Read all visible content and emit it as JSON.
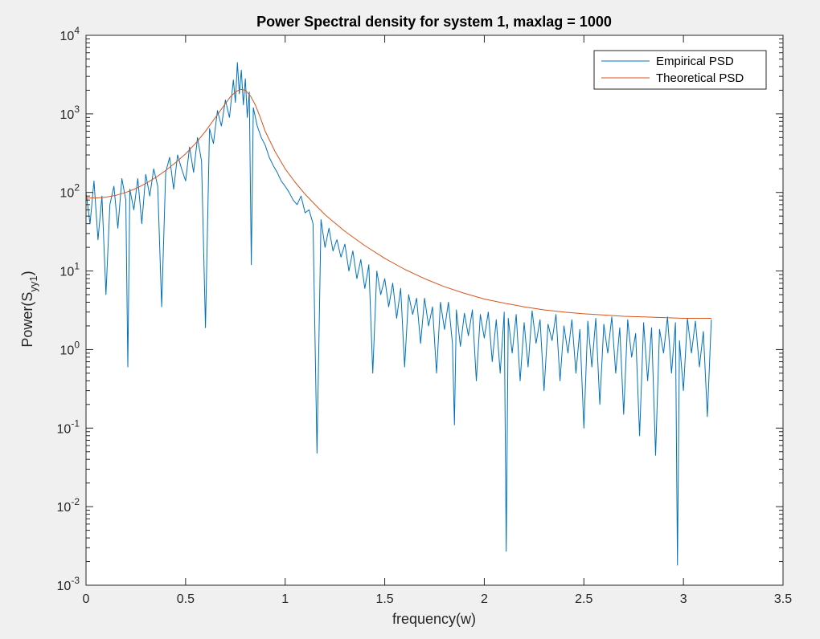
{
  "chart_data": {
    "type": "line",
    "title": "Power Spectral density for system 1, maxlag = 1000",
    "xlabel": "frequency(w)",
    "ylabel": {
      "main": "Power(S",
      "sub": "yy1",
      "close": ")"
    },
    "xlim": [
      0,
      3.5
    ],
    "ylim": [
      0.001,
      10000
    ],
    "yscale": "log",
    "xticks": [
      {
        "v": 0,
        "label": "0"
      },
      {
        "v": 0.5,
        "label": "0.5"
      },
      {
        "v": 1,
        "label": "1"
      },
      {
        "v": 1.5,
        "label": "1.5"
      },
      {
        "v": 2,
        "label": "2"
      },
      {
        "v": 2.5,
        "label": "2.5"
      },
      {
        "v": 3,
        "label": "3"
      },
      {
        "v": 3.5,
        "label": "3.5"
      }
    ],
    "yticks": [
      {
        "v": 0.001,
        "base": "10",
        "exp": "-3"
      },
      {
        "v": 0.01,
        "base": "10",
        "exp": "-2"
      },
      {
        "v": 0.1,
        "base": "10",
        "exp": "-1"
      },
      {
        "v": 1,
        "base": "10",
        "exp": "0"
      },
      {
        "v": 10,
        "base": "10",
        "exp": "1"
      },
      {
        "v": 100,
        "base": "10",
        "exp": "2"
      },
      {
        "v": 1000,
        "base": "10",
        "exp": "3"
      },
      {
        "v": 10000,
        "base": "10",
        "exp": "4"
      }
    ],
    "grid": false,
    "legend_position": "top-right",
    "series": [
      {
        "name": "Empirical PSD",
        "color": "#0072bd",
        "x": [
          0.0,
          0.02,
          0.04,
          0.06,
          0.08,
          0.1,
          0.12,
          0.14,
          0.16,
          0.18,
          0.2,
          0.21,
          0.22,
          0.24,
          0.26,
          0.28,
          0.3,
          0.32,
          0.34,
          0.36,
          0.38,
          0.4,
          0.42,
          0.44,
          0.46,
          0.48,
          0.5,
          0.52,
          0.54,
          0.56,
          0.58,
          0.6,
          0.62,
          0.64,
          0.66,
          0.68,
          0.7,
          0.72,
          0.74,
          0.75,
          0.76,
          0.77,
          0.78,
          0.79,
          0.8,
          0.81,
          0.82,
          0.83,
          0.84,
          0.86,
          0.88,
          0.9,
          0.92,
          0.94,
          0.96,
          0.98,
          1.0,
          1.02,
          1.04,
          1.06,
          1.08,
          1.1,
          1.12,
          1.14,
          1.16,
          1.18,
          1.2,
          1.22,
          1.24,
          1.26,
          1.28,
          1.3,
          1.32,
          1.34,
          1.36,
          1.38,
          1.4,
          1.42,
          1.44,
          1.46,
          1.48,
          1.5,
          1.52,
          1.54,
          1.56,
          1.58,
          1.6,
          1.62,
          1.64,
          1.66,
          1.68,
          1.7,
          1.72,
          1.74,
          1.76,
          1.78,
          1.8,
          1.82,
          1.84,
          1.85,
          1.86,
          1.88,
          1.9,
          1.92,
          1.94,
          1.96,
          1.98,
          2.0,
          2.02,
          2.04,
          2.06,
          2.08,
          2.1,
          2.11,
          2.12,
          2.14,
          2.16,
          2.18,
          2.2,
          2.22,
          2.24,
          2.26,
          2.28,
          2.3,
          2.32,
          2.34,
          2.36,
          2.38,
          2.4,
          2.42,
          2.44,
          2.46,
          2.48,
          2.5,
          2.52,
          2.54,
          2.56,
          2.58,
          2.6,
          2.62,
          2.64,
          2.66,
          2.68,
          2.7,
          2.72,
          2.74,
          2.76,
          2.78,
          2.8,
          2.82,
          2.84,
          2.86,
          2.88,
          2.9,
          2.92,
          2.94,
          2.96,
          2.97,
          2.98,
          3.0,
          3.02,
          3.04,
          3.06,
          3.08,
          3.1,
          3.12,
          3.14
        ],
        "y": [
          100,
          40,
          140,
          25,
          90,
          5,
          70,
          120,
          35,
          150,
          80,
          0.6,
          110,
          60,
          150,
          40,
          170,
          90,
          200,
          120,
          3.5,
          180,
          280,
          110,
          300,
          200,
          140,
          380,
          180,
          500,
          250,
          1.9,
          650,
          420,
          1100,
          700,
          1500,
          900,
          2700,
          1400,
          4500,
          1800,
          3600,
          1300,
          2800,
          900,
          1900,
          12,
          1200,
          700,
          500,
          400,
          280,
          220,
          180,
          140,
          120,
          100,
          80,
          70,
          90,
          55,
          60,
          40,
          0.048,
          45,
          20,
          35,
          18,
          25,
          15,
          22,
          10,
          18,
          8,
          14,
          6,
          12,
          0.5,
          10,
          5,
          8,
          3.5,
          7,
          2.5,
          6,
          0.6,
          5,
          2.8,
          4.5,
          1.2,
          4.5,
          2,
          3.5,
          0.5,
          4,
          1.8,
          4,
          1.2,
          0.11,
          3.2,
          1.1,
          2.9,
          1.5,
          3.2,
          0.4,
          2.8,
          1.4,
          3,
          0.7,
          2.4,
          0.5,
          3,
          0.0027,
          2.5,
          0.9,
          2.8,
          0.4,
          2.2,
          0.6,
          3.1,
          1.2,
          2.4,
          0.3,
          2.1,
          1.3,
          2.8,
          0.4,
          2,
          0.9,
          2.4,
          0.5,
          1.8,
          0.1,
          2.3,
          0.6,
          2.5,
          0.2,
          2.1,
          0.9,
          2.6,
          0.5,
          1.9,
          0.15,
          2.4,
          0.8,
          1.6,
          0.08,
          2.2,
          0.4,
          1.9,
          0.045,
          1.8,
          0.9,
          2.6,
          0.5,
          2.2,
          0.0018,
          1.3,
          0.3,
          2.5,
          0.9,
          2.3,
          0.6,
          1.7,
          0.14,
          2.4
        ]
      },
      {
        "name": "Theoretical PSD",
        "color": "#d95319",
        "x": [
          0.0,
          0.05,
          0.1,
          0.15,
          0.2,
          0.25,
          0.3,
          0.35,
          0.4,
          0.45,
          0.5,
          0.55,
          0.6,
          0.65,
          0.7,
          0.725,
          0.75,
          0.775,
          0.8,
          0.825,
          0.85,
          0.875,
          0.9,
          0.95,
          1.0,
          1.05,
          1.1,
          1.15,
          1.2,
          1.3,
          1.4,
          1.5,
          1.6,
          1.7,
          1.8,
          1.9,
          2.0,
          2.1,
          2.2,
          2.3,
          2.4,
          2.5,
          2.6,
          2.7,
          2.8,
          2.9,
          3.0,
          3.1,
          3.14
        ],
        "y": [
          85,
          85,
          87,
          92,
          100,
          112,
          130,
          155,
          190,
          240,
          310,
          420,
          600,
          900,
          1350,
          1650,
          1900,
          2050,
          2000,
          1700,
          1300,
          900,
          600,
          330,
          200,
          135,
          95,
          70,
          52,
          32,
          21,
          14.5,
          10.5,
          8,
          6.3,
          5.2,
          4.4,
          3.9,
          3.5,
          3.2,
          3.0,
          2.85,
          2.75,
          2.65,
          2.6,
          2.55,
          2.5,
          2.5,
          2.5
        ]
      }
    ]
  }
}
